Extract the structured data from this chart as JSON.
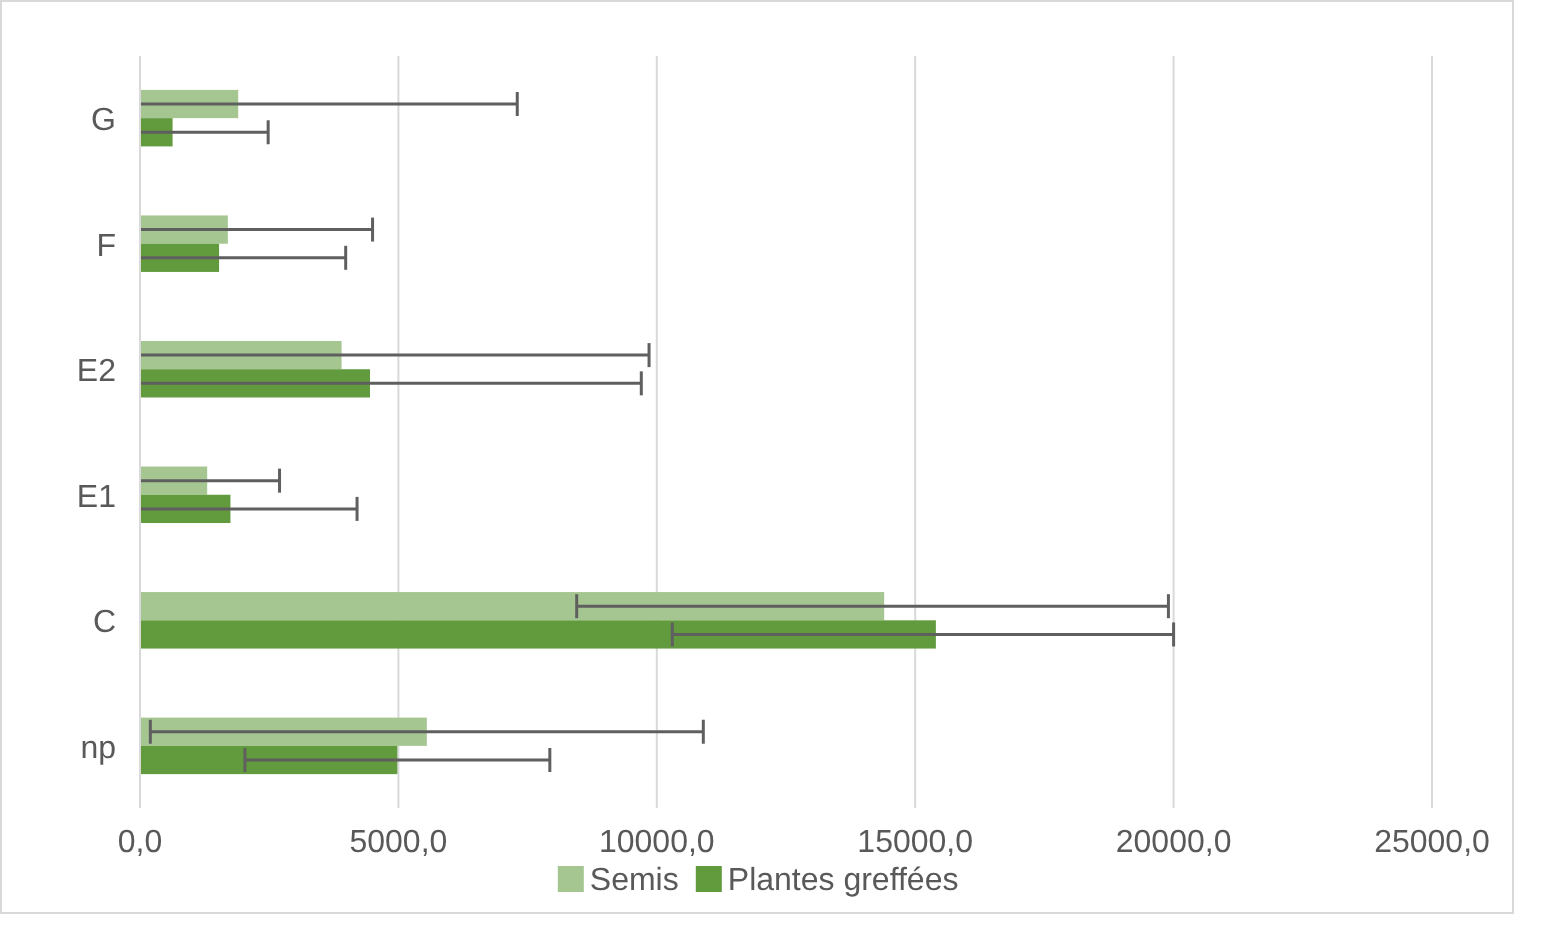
{
  "chart_data": {
    "type": "bar",
    "orientation": "horizontal",
    "categories": [
      "G",
      "F",
      "E2",
      "E1",
      "C",
      "np"
    ],
    "series": [
      {
        "name": "Semis",
        "color": "#a5c690",
        "values": [
          1900,
          1700,
          3900,
          1300,
          14400,
          5550
        ],
        "errors": [
          [
            0,
            7300
          ],
          [
            0,
            4500
          ],
          [
            0,
            9850
          ],
          [
            0,
            2700
          ],
          [
            8450,
            19900
          ],
          5350
        ]
      },
      {
        "name": "Plantes greffées",
        "color": "#629a3e",
        "values": [
          630,
          1530,
          4450,
          1750,
          15400,
          4980
        ],
        "errors": [
          [
            0,
            2480
          ],
          [
            0,
            3980
          ],
          [
            0,
            9700
          ],
          [
            0,
            4200
          ],
          [
            10300,
            20000
          ],
          2950
        ]
      }
    ],
    "xlim": [
      0,
      25000
    ],
    "xticks": [
      {
        "value": 0,
        "label": "0,0"
      },
      {
        "value": 5000,
        "label": "5000,0"
      },
      {
        "value": 10000,
        "label": "10000,0"
      },
      {
        "value": 15000,
        "label": "15000,0"
      },
      {
        "value": 20000,
        "label": "20000,0"
      },
      {
        "value": 25000,
        "label": "25000,0"
      }
    ],
    "grid": "x",
    "legend": "bottom"
  }
}
